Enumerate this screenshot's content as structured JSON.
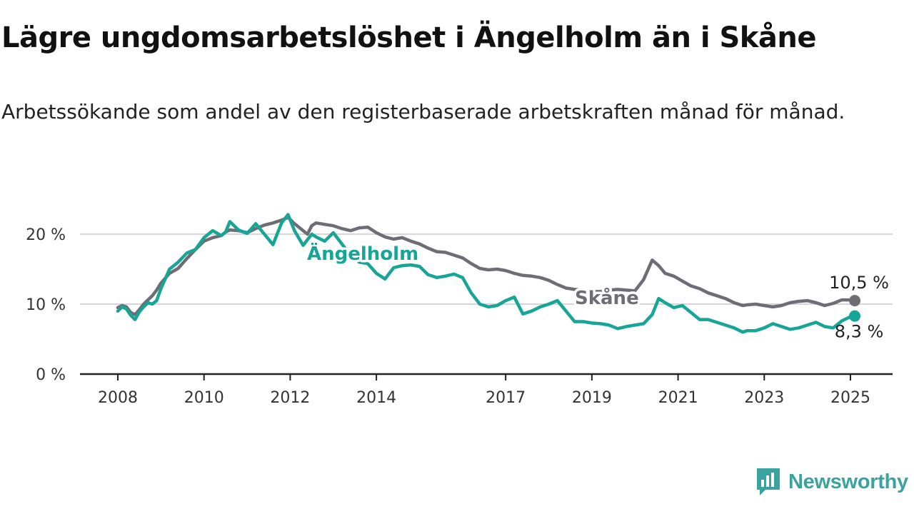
{
  "header": {
    "title": "Lägre ungdomsarbetslöshet i Ängelholm än i Skåne",
    "subtitle": "Arbetssökande som andel av den registerbaserade arbetskraften månad för månad."
  },
  "brand": {
    "name": "Newsworthy",
    "icon": "newsworthy-logo-icon",
    "color": "#3aa3a0"
  },
  "chart_data": {
    "type": "line",
    "title": "Lägre ungdomsarbetslöshet i Ängelholm än i Skåne",
    "subtitle": "Arbetssökande som andel av den registerbaserade arbetskraften månad för månad.",
    "xlabel": "",
    "ylabel": "",
    "x_ticks": [
      "2008",
      "2010",
      "2012",
      "2014",
      "2017",
      "2019",
      "2021",
      "2023",
      "2025"
    ],
    "y_ticks": [
      "0 %",
      "10 %",
      "20 %"
    ],
    "ylim": [
      0,
      25
    ],
    "xlim": [
      2007.8,
      2026.0
    ],
    "grid": true,
    "legend": "inline labels",
    "series": [
      {
        "name": "Skåne",
        "color": "#6e6d75",
        "end_label": "10,5 %",
        "x": [
          2008.0,
          2008.1,
          2008.2,
          2008.3,
          2008.4,
          2008.5,
          2008.6,
          2008.7,
          2008.8,
          2008.9,
          2009.0,
          2009.2,
          2009.4,
          2009.6,
          2009.8,
          2010.0,
          2010.2,
          2010.4,
          2010.5,
          2010.6,
          2010.8,
          2011.0,
          2011.2,
          2011.4,
          2011.6,
          2011.8,
          2011.95,
          2012.1,
          2012.3,
          2012.4,
          2012.5,
          2012.6,
          2012.8,
          2013.0,
          2013.2,
          2013.4,
          2013.6,
          2013.8,
          2014.0,
          2014.2,
          2014.4,
          2014.6,
          2014.8,
          2015.0,
          2015.2,
          2015.4,
          2015.6,
          2015.8,
          2016.0,
          2016.2,
          2016.4,
          2016.6,
          2016.8,
          2017.0,
          2017.2,
          2017.4,
          2017.6,
          2017.8,
          2018.0,
          2018.2,
          2018.4,
          2018.6,
          2018.8,
          2019.0,
          2019.2,
          2019.4,
          2019.6,
          2019.8,
          2020.0,
          2020.2,
          2020.4,
          2020.55,
          2020.7,
          2020.9,
          2021.1,
          2021.3,
          2021.5,
          2021.7,
          2021.9,
          2022.1,
          2022.3,
          2022.5,
          2022.6,
          2022.8,
          2023.0,
          2023.2,
          2023.4,
          2023.6,
          2023.8,
          2024.0,
          2024.2,
          2024.4,
          2024.6,
          2024.8,
          2025.0,
          2025.1
        ],
        "values": [
          9.5,
          9.8,
          9.6,
          8.8,
          8.5,
          9.2,
          10.0,
          10.6,
          11.2,
          12.0,
          13.0,
          14.4,
          15.1,
          16.5,
          17.8,
          19.0,
          19.5,
          19.8,
          20.3,
          20.6,
          20.5,
          20.2,
          20.8,
          21.3,
          21.6,
          22.0,
          22.4,
          21.5,
          20.5,
          20.0,
          21.2,
          21.6,
          21.4,
          21.2,
          20.8,
          20.5,
          20.9,
          21.0,
          20.2,
          19.6,
          19.3,
          19.5,
          19.0,
          18.6,
          18.0,
          17.5,
          17.4,
          17.0,
          16.6,
          15.8,
          15.1,
          14.9,
          15.0,
          14.8,
          14.4,
          14.1,
          14.0,
          13.8,
          13.4,
          12.8,
          12.3,
          12.1,
          12.0,
          11.8,
          11.8,
          12.0,
          12.1,
          12.0,
          11.9,
          13.5,
          16.3,
          15.5,
          14.4,
          14.0,
          13.3,
          12.6,
          12.2,
          11.6,
          11.2,
          10.8,
          10.2,
          9.8,
          9.9,
          10.0,
          9.8,
          9.6,
          9.8,
          10.2,
          10.4,
          10.5,
          10.2,
          9.8,
          10.1,
          10.6,
          10.6,
          10.5
        ]
      },
      {
        "name": "Ängelholm",
        "color": "#16a596",
        "end_label": "8,3 %",
        "x": [
          2008.0,
          2008.1,
          2008.2,
          2008.3,
          2008.4,
          2008.5,
          2008.6,
          2008.7,
          2008.8,
          2008.9,
          2009.0,
          2009.2,
          2009.4,
          2009.6,
          2009.8,
          2010.0,
          2010.2,
          2010.4,
          2010.5,
          2010.6,
          2010.8,
          2011.0,
          2011.2,
          2011.4,
          2011.6,
          2011.8,
          2011.95,
          2012.1,
          2012.3,
          2012.4,
          2012.5,
          2012.6,
          2012.8,
          2013.0,
          2013.2,
          2013.4,
          2013.6,
          2013.8,
          2014.0,
          2014.2,
          2014.4,
          2014.6,
          2014.8,
          2015.0,
          2015.2,
          2015.4,
          2015.6,
          2015.8,
          2016.0,
          2016.2,
          2016.4,
          2016.6,
          2016.8,
          2017.0,
          2017.2,
          2017.4,
          2017.6,
          2017.8,
          2018.0,
          2018.2,
          2018.4,
          2018.6,
          2018.8,
          2019.0,
          2019.2,
          2019.4,
          2019.6,
          2019.8,
          2020.0,
          2020.2,
          2020.4,
          2020.55,
          2020.7,
          2020.9,
          2021.1,
          2021.3,
          2021.5,
          2021.7,
          2021.9,
          2022.1,
          2022.3,
          2022.5,
          2022.6,
          2022.8,
          2023.0,
          2023.2,
          2023.4,
          2023.6,
          2023.8,
          2024.0,
          2024.2,
          2024.4,
          2024.6,
          2024.8,
          2025.0,
          2025.1
        ],
        "values": [
          9.0,
          9.6,
          9.3,
          8.4,
          7.8,
          8.9,
          9.6,
          10.2,
          10.0,
          10.5,
          12.2,
          15.0,
          16.0,
          17.3,
          17.8,
          19.5,
          20.5,
          19.8,
          20.3,
          21.8,
          20.6,
          20.1,
          21.5,
          20.0,
          18.5,
          21.6,
          22.8,
          20.5,
          18.4,
          19.2,
          20.0,
          19.6,
          19.0,
          20.2,
          18.6,
          17.0,
          16.0,
          15.8,
          14.4,
          13.6,
          15.2,
          15.5,
          15.6,
          15.4,
          14.2,
          13.8,
          14.0,
          14.3,
          13.8,
          11.6,
          10.0,
          9.6,
          9.8,
          10.5,
          11.0,
          8.6,
          9.0,
          9.6,
          10.0,
          10.5,
          9.0,
          7.5,
          7.5,
          7.3,
          7.2,
          7.0,
          6.5,
          6.8,
          7.0,
          7.2,
          8.5,
          10.8,
          10.2,
          9.5,
          9.8,
          8.8,
          7.8,
          7.8,
          7.4,
          7.0,
          6.6,
          6.0,
          6.2,
          6.2,
          6.6,
          7.2,
          6.8,
          6.4,
          6.6,
          7.0,
          7.4,
          6.8,
          6.6,
          7.6,
          8.2,
          8.3
        ]
      }
    ]
  }
}
